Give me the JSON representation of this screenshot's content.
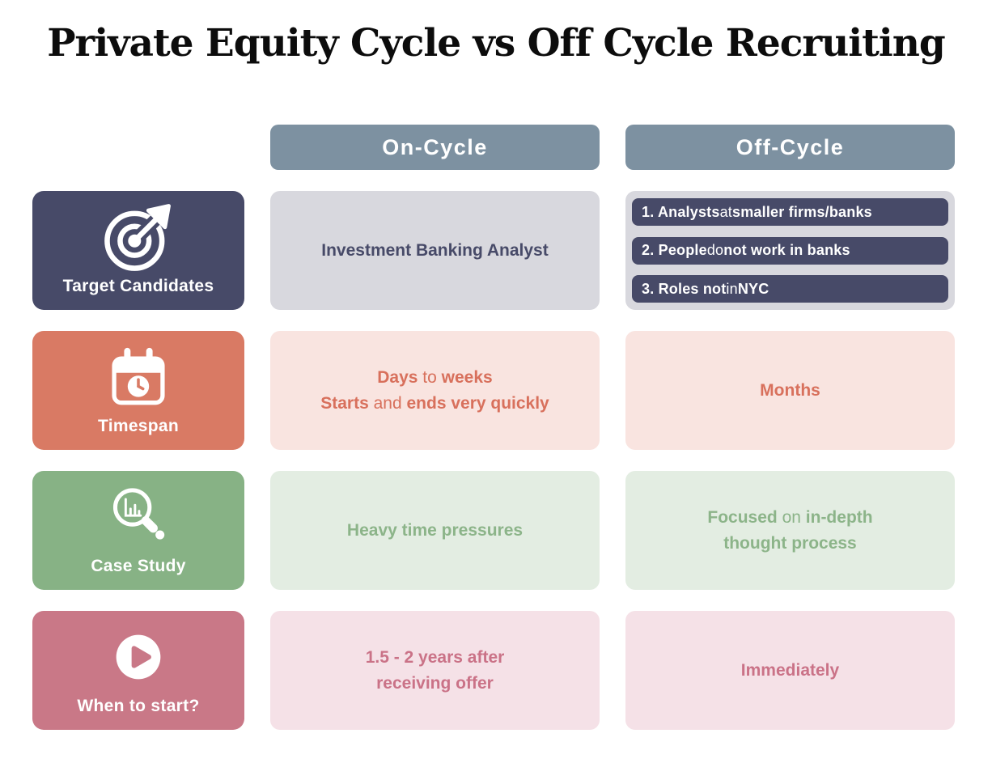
{
  "title": "Private Equity Cycle vs Off Cycle Recruiting",
  "headers": {
    "on_cycle": "On-Cycle",
    "off_cycle": "Off-Cycle"
  },
  "colors": {
    "background": "#FFFFFF",
    "title_text": "#0C0C0C",
    "header_bg": "#7D91A1",
    "header_text": "#FFFFFF"
  },
  "rows": [
    {
      "label": "Target Candidates",
      "icon": "target-icon",
      "colors": {
        "card_bg": "#474A68",
        "card_text": "#FFFFFF",
        "cell_bg": "#D8D8DE",
        "cell_text": "#474A68",
        "pill_bg": "#474A68",
        "pill_text": "#FFFFFF"
      },
      "on_cycle_lines": [
        [
          {
            "t": "Investment Banking Analyst",
            "b": true
          }
        ]
      ],
      "off_cycle_pills": [
        [
          {
            "t": "1. Analysts",
            "b": true
          },
          {
            "t": " at ",
            "b": false
          },
          {
            "t": "smaller firms/banks",
            "b": true
          }
        ],
        [
          {
            "t": "2. People",
            "b": true
          },
          {
            "t": " do ",
            "b": false
          },
          {
            "t": "not work in banks",
            "b": true
          }
        ],
        [
          {
            "t": "3. Roles not",
            "b": true
          },
          {
            "t": " in ",
            "b": false
          },
          {
            "t": "NYC",
            "b": true
          }
        ]
      ]
    },
    {
      "label": "Timespan",
      "icon": "calendar-clock-icon",
      "colors": {
        "card_bg": "#D97A64",
        "card_text": "#FFFFFF",
        "cell_bg": "#F9E4E0",
        "cell_text": "#D8705C"
      },
      "on_cycle_lines": [
        [
          {
            "t": "Days",
            "b": true
          },
          {
            "t": " to ",
            "b": false
          },
          {
            "t": "weeks",
            "b": true
          }
        ],
        [
          {
            "t": "Starts",
            "b": true
          },
          {
            "t": " and ",
            "b": false
          },
          {
            "t": "ends very quickly",
            "b": true
          }
        ]
      ],
      "off_cycle_lines": [
        [
          {
            "t": "Months",
            "b": true
          }
        ]
      ]
    },
    {
      "label": "Case Study",
      "icon": "magnifier-chart-icon",
      "colors": {
        "card_bg": "#87B285",
        "card_text": "#FFFFFF",
        "cell_bg": "#E3EDE2",
        "cell_text": "#8CB489"
      },
      "on_cycle_lines": [
        [
          {
            "t": "Heavy time pressures",
            "b": true
          }
        ]
      ],
      "off_cycle_lines": [
        [
          {
            "t": "Focused",
            "b": true
          },
          {
            "t": " on ",
            "b": false
          },
          {
            "t": "in-depth",
            "b": true
          }
        ],
        [
          {
            "t": "thought process",
            "b": true
          }
        ]
      ]
    },
    {
      "label": "When to start?",
      "icon": "play-icon",
      "colors": {
        "card_bg": "#C97887",
        "card_text": "#FFFFFF",
        "cell_bg": "#F5E1E7",
        "cell_text": "#CA7287"
      },
      "on_cycle_lines": [
        [
          {
            "t": "1.5 - 2 years after",
            "b": true
          }
        ],
        [
          {
            "t": "receiving offer",
            "b": true
          }
        ]
      ],
      "off_cycle_lines": [
        [
          {
            "t": "Immediately",
            "b": true
          }
        ]
      ]
    }
  ]
}
